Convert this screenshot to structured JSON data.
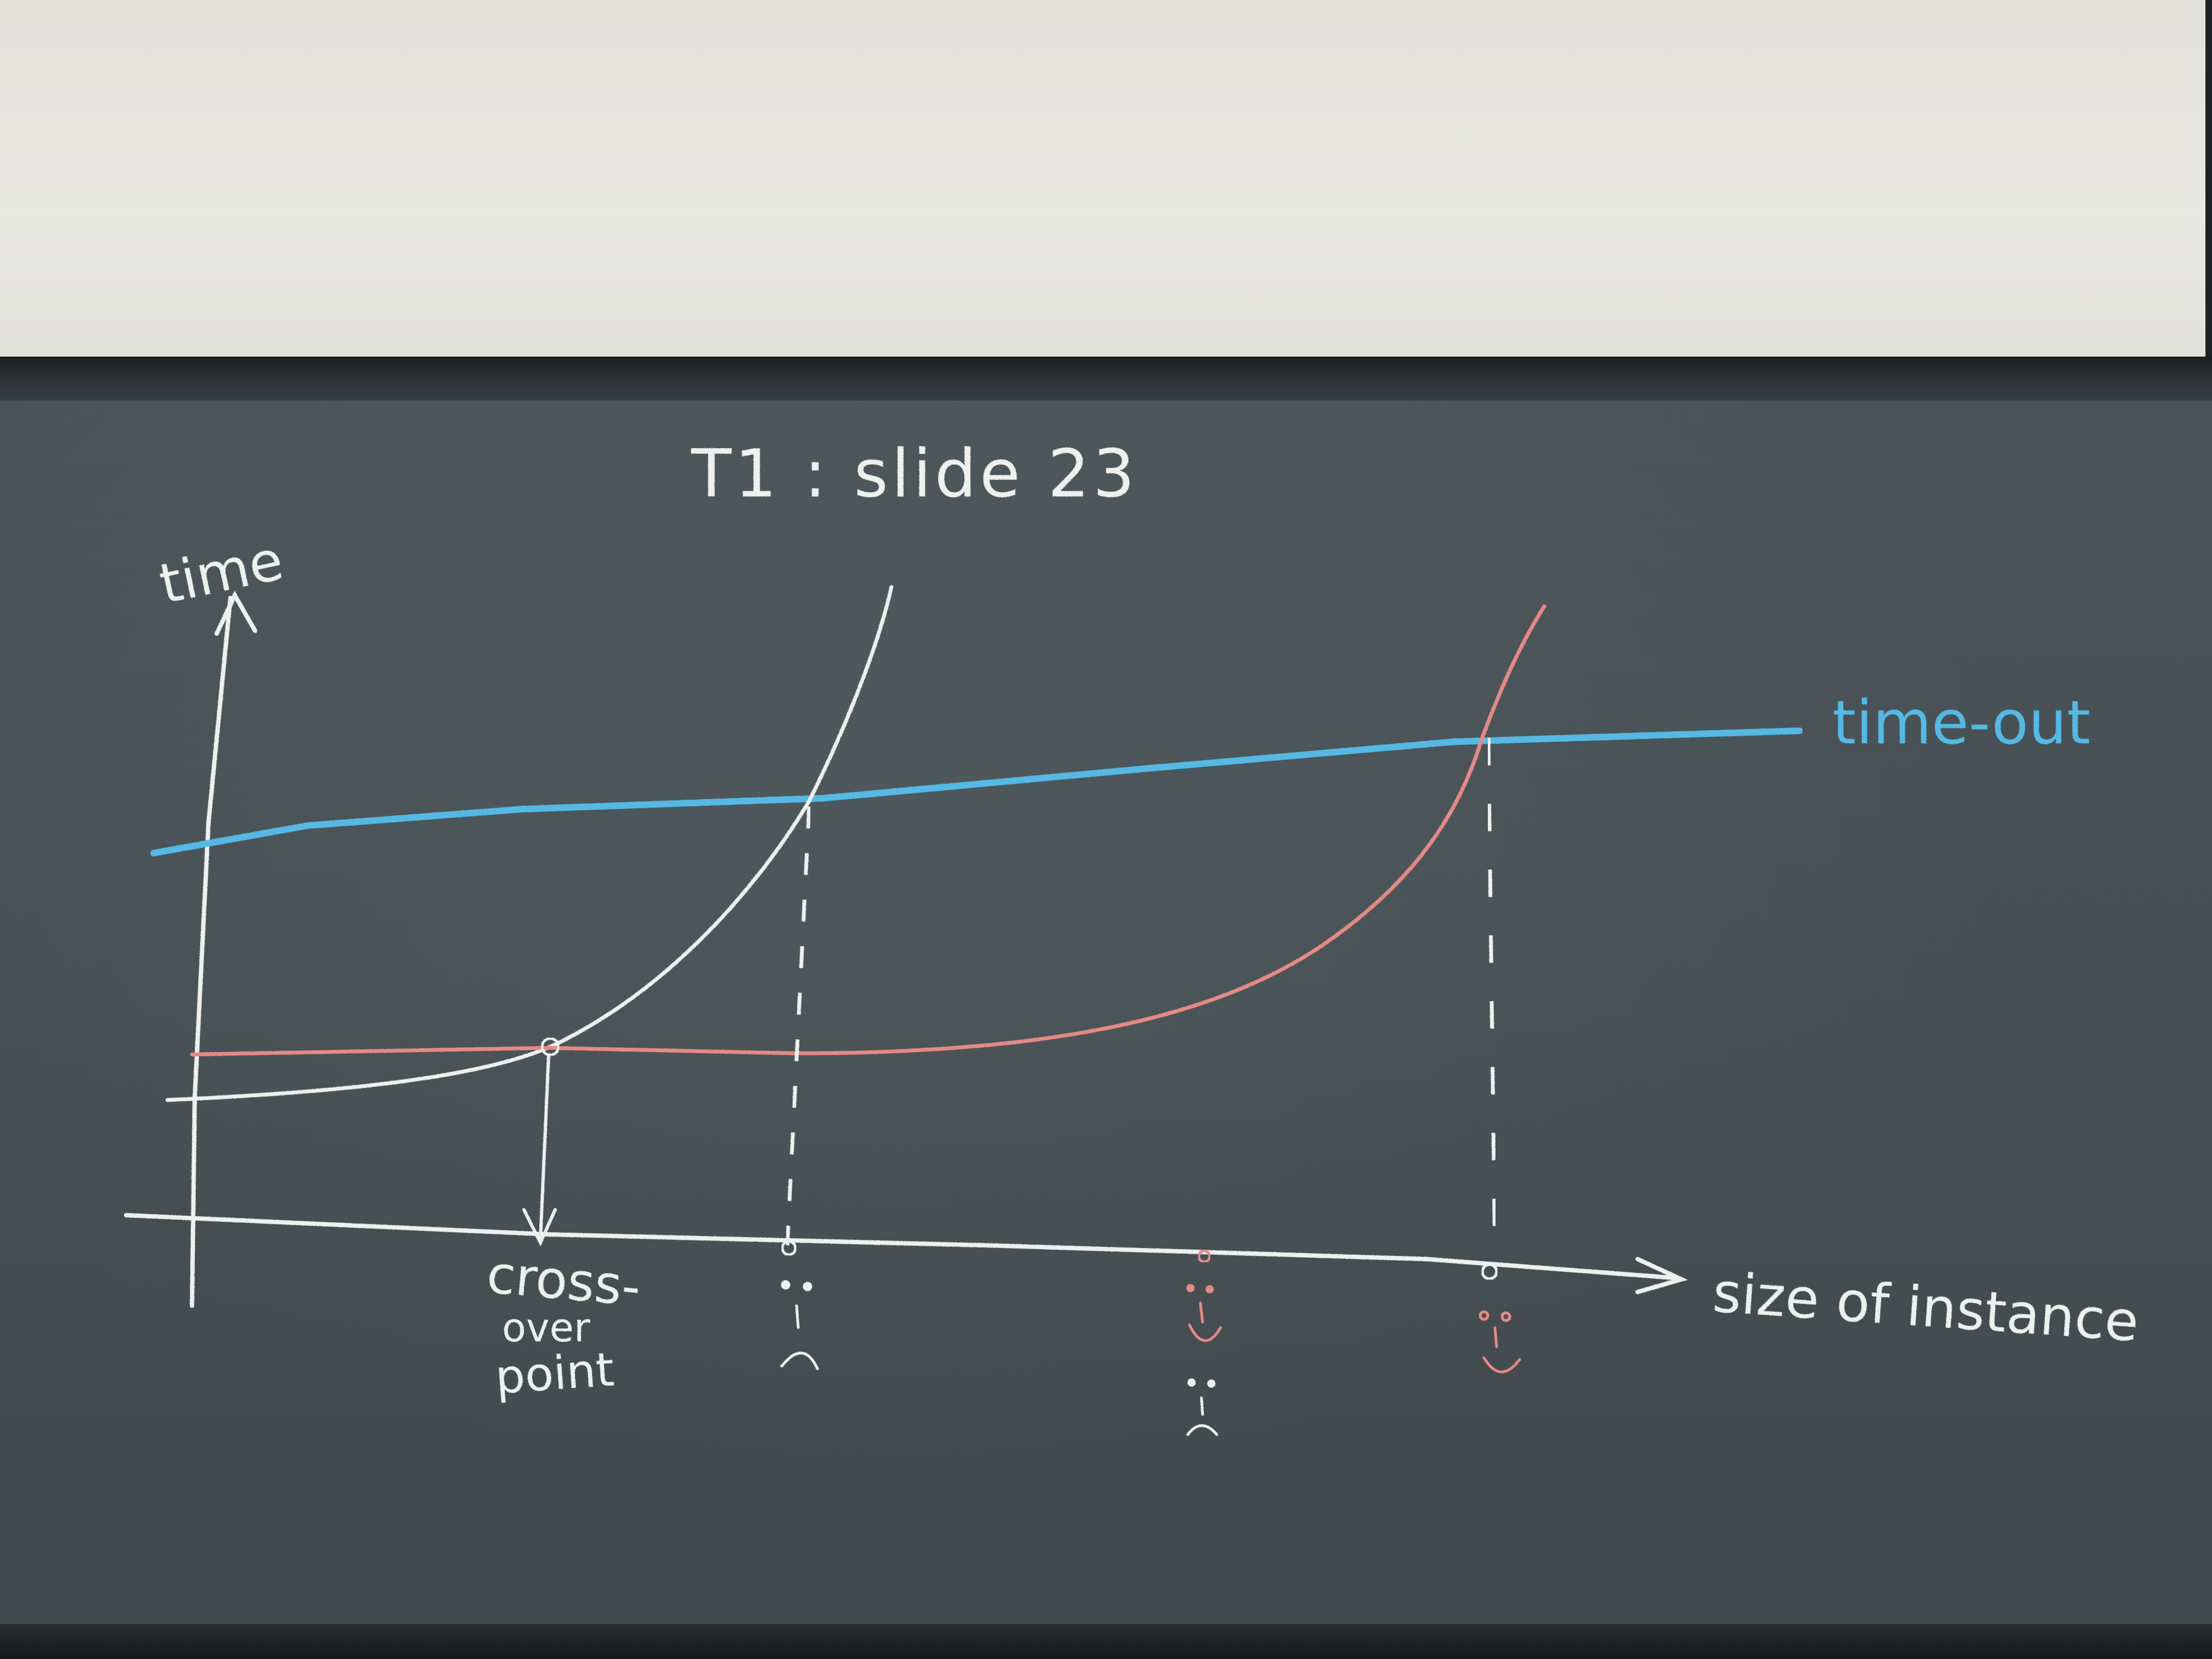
{
  "title": "T1 : slide 23",
  "y_axis_label": "time",
  "x_axis_label": "size of instance",
  "timeout_label": "time-out",
  "crossover_label": {
    "line1": "cross-",
    "line2": "over",
    "line3": "point"
  },
  "colors": {
    "chalk_white": "#eef0ee",
    "chalk_blue": "#55b9e4",
    "chalk_red": "#e58a86",
    "board": "#475054",
    "wall": "#e6e5e0"
  },
  "faces": [
    {
      "curve": "white",
      "mood": "sad"
    },
    {
      "curve": "red",
      "mood": "happy"
    },
    {
      "curve": "white",
      "mood": "sad"
    },
    {
      "curve": "red",
      "mood": "happy"
    }
  ]
}
